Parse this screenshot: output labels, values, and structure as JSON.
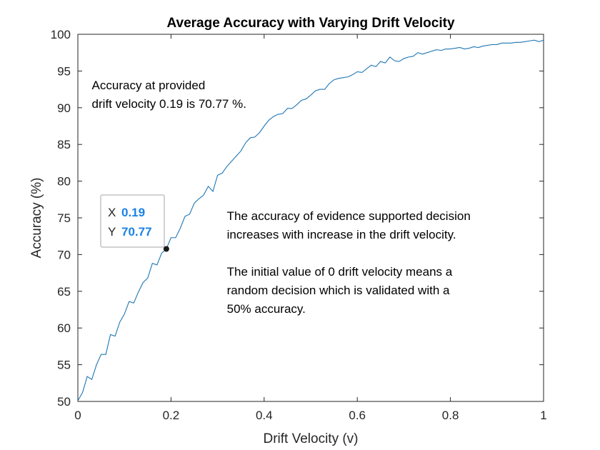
{
  "chart_data": {
    "type": "line",
    "title": "Average Accuracy with Varying Drift Velocity",
    "xlabel": "Drift Velocity (v)",
    "ylabel": "Accuracy (%)",
    "xlim": [
      0,
      1
    ],
    "ylim": [
      50,
      100
    ],
    "xticks": [
      "0",
      "0.2",
      "0.4",
      "0.6",
      "0.8",
      "1"
    ],
    "yticks": [
      "50",
      "55",
      "60",
      "65",
      "70",
      "75",
      "80",
      "85",
      "90",
      "95",
      "100"
    ],
    "grid": false,
    "line_color": "#1f77b4",
    "series": [
      {
        "x": [
          0,
          0.01,
          0.02,
          0.03,
          0.04,
          0.05,
          0.06,
          0.07,
          0.08,
          0.09,
          0.1,
          0.11,
          0.12,
          0.13,
          0.14,
          0.15,
          0.16,
          0.17,
          0.18,
          0.19,
          0.2,
          0.21,
          0.22,
          0.23,
          0.24,
          0.25,
          0.26,
          0.27,
          0.28,
          0.29,
          0.3,
          0.31,
          0.32,
          0.33,
          0.34,
          0.35,
          0.36,
          0.37,
          0.38,
          0.39,
          0.4,
          0.41,
          0.42,
          0.43,
          0.44,
          0.45,
          0.46,
          0.47,
          0.48,
          0.49,
          0.5,
          0.51,
          0.52,
          0.53,
          0.54,
          0.55,
          0.56,
          0.57,
          0.58,
          0.59,
          0.6,
          0.61,
          0.62,
          0.63,
          0.64,
          0.65,
          0.66,
          0.67,
          0.68,
          0.69,
          0.7,
          0.71,
          0.72,
          0.73,
          0.74,
          0.75,
          0.76,
          0.77,
          0.78,
          0.79,
          0.8,
          0.81,
          0.82,
          0.83,
          0.84,
          0.85,
          0.86,
          0.87,
          0.88,
          0.89,
          0.9,
          0.91,
          0.92,
          0.93,
          0.94,
          0.95,
          0.96,
          0.97,
          0.98,
          0.99,
          1
        ],
        "values": [
          50.1,
          51.2,
          53.4,
          53.0,
          55.0,
          56.4,
          56.4,
          59.1,
          58.9,
          60.8,
          61.9,
          63.6,
          63.4,
          64.9,
          66.2,
          66.8,
          68.8,
          68.6,
          70.2,
          70.77,
          72.3,
          72.3,
          73.6,
          75.2,
          75.5,
          77.0,
          77.6,
          78.1,
          79.3,
          78.6,
          80.8,
          81.1,
          82.0,
          82.7,
          83.4,
          84.1,
          85.2,
          85.9,
          86.0,
          86.6,
          87.5,
          88.3,
          88.8,
          89.1,
          89.2,
          89.9,
          89.9,
          90.4,
          91.0,
          91.2,
          91.7,
          92.3,
          92.5,
          92.5,
          93.3,
          93.8,
          94.0,
          94.1,
          94.2,
          94.5,
          94.9,
          94.8,
          95.3,
          95.8,
          95.6,
          96.3,
          96.1,
          96.9,
          96.4,
          96.3,
          96.7,
          96.9,
          97.0,
          97.5,
          97.3,
          97.5,
          97.7,
          97.9,
          97.8,
          98.0,
          98.0,
          98.1,
          98.2,
          98.0,
          98.1,
          98.3,
          98.2,
          98.4,
          98.5,
          98.6,
          98.6,
          98.8,
          98.8,
          98.8,
          98.9,
          98.9,
          99.0,
          99.1,
          99.2,
          99.0,
          99.2
        ]
      }
    ],
    "annotations": [
      {
        "lines": [
          "Accuracy at provided",
          "drift velocity 0.19 is 70.77 %."
        ],
        "x": 0.03,
        "y": 92.5
      },
      {
        "lines": [
          "The accuracy of evidence supported decision",
          "increases with increase in the drift velocity.",
          "",
          "The initial value of 0 drift velocity means a",
          "random decision which is validated with a",
          "50% accuracy."
        ],
        "x": 0.32,
        "y": 74.7
      }
    ],
    "datatip": {
      "x": 0.19,
      "y": 70.77,
      "x_key": "X",
      "y_key": "Y",
      "x_text": "0.19",
      "y_text": "70.77"
    }
  }
}
